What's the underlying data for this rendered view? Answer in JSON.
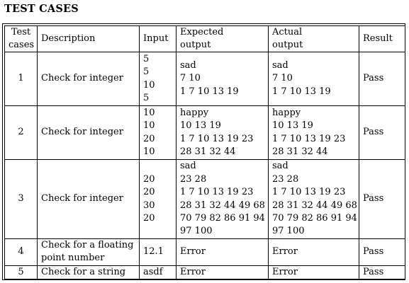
{
  "title": "TEST CASES",
  "headers": {
    "num": [
      "Test",
      "cases"
    ],
    "description": "Description",
    "input": "Input",
    "expected": [
      "Expected",
      "output"
    ],
    "actual": [
      "Actual",
      "output"
    ],
    "result": "Result"
  },
  "rows": [
    {
      "num": "1",
      "description": [
        "Check for integer"
      ],
      "input": [
        "5",
        "5",
        "10",
        "5"
      ],
      "expected": [
        "sad",
        "7 10",
        "1 7 10 13 19"
      ],
      "actual": [
        "sad",
        "7 10",
        "1 7 10 13 19"
      ],
      "result": "Pass"
    },
    {
      "num": "2",
      "description": [
        "Check for integer"
      ],
      "input": [
        "10",
        "10",
        "20",
        "10"
      ],
      "expected": [
        "happy",
        "10 13 19",
        "1 7 10 13 19 23",
        "28 31 32 44"
      ],
      "actual": [
        "happy",
        "10 13 19",
        "1 7 10 13 19 23",
        "28 31 32 44"
      ],
      "result": "Pass"
    },
    {
      "num": "3",
      "description": [
        "Check for integer"
      ],
      "input": [
        "20",
        "20",
        "30",
        "20"
      ],
      "expected": [
        "sad",
        "23 28",
        "1 7 10 13 19 23",
        "28 31 32 44 49 68",
        "70 79 82 86 91 94",
        "97 100"
      ],
      "actual": [
        "sad",
        "23 28",
        "1 7 10 13 19 23",
        "28 31 32 44 49 68",
        "70 79 82 86 91 94",
        "97 100"
      ],
      "result": "Pass"
    },
    {
      "num": "4",
      "description": [
        "Check for a floating",
        "point number"
      ],
      "input": [
        "12.1"
      ],
      "expected": [
        "Error"
      ],
      "actual": [
        "Error"
      ],
      "result": "Pass"
    },
    {
      "num": "5",
      "description": [
        "Check for a string"
      ],
      "input": [
        "asdf"
      ],
      "expected": [
        "Error"
      ],
      "actual": [
        "Error"
      ],
      "result": "Pass"
    }
  ]
}
